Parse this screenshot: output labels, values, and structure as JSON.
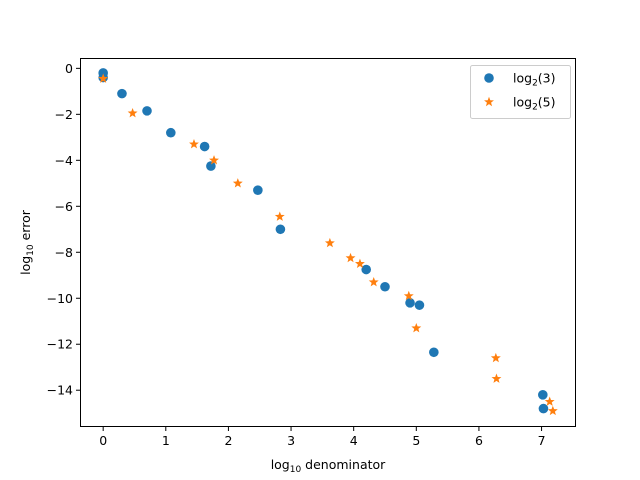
{
  "chart_data": {
    "type": "scatter",
    "title": "",
    "xlabel": {
      "prefix": "log",
      "sub": "10",
      "suffix": " denominator"
    },
    "ylabel": {
      "prefix": "log",
      "sub": "10",
      "suffix": " error"
    },
    "xlim": [
      -0.37,
      7.55
    ],
    "ylim": [
      -15.6,
      0.45
    ],
    "xticks": [
      0,
      1,
      2,
      3,
      4,
      5,
      6,
      7
    ],
    "yticks": [
      0,
      -2,
      -4,
      -6,
      -8,
      -10,
      -12,
      -14
    ],
    "ytick_labels": [
      "0",
      "−2",
      "−4",
      "−6",
      "−8",
      "−10",
      "−12",
      "−14"
    ],
    "grid": false,
    "legend_position": "upper right",
    "series": [
      {
        "name": {
          "prefix": "log",
          "sub": "2",
          "suffix": "(3)"
        },
        "marker": "circle",
        "color": "#1f77b4",
        "points": [
          [
            0.0,
            -0.2
          ],
          [
            0.0,
            -0.4
          ],
          [
            0.3,
            -1.1
          ],
          [
            0.7,
            -1.85
          ],
          [
            1.08,
            -2.8
          ],
          [
            1.62,
            -3.4
          ],
          [
            1.72,
            -4.25
          ],
          [
            2.47,
            -5.3
          ],
          [
            2.83,
            -7.0
          ],
          [
            4.2,
            -8.75
          ],
          [
            4.5,
            -9.5
          ],
          [
            4.9,
            -10.2
          ],
          [
            5.05,
            -10.3
          ],
          [
            5.28,
            -12.35
          ],
          [
            7.02,
            -14.2
          ],
          [
            7.03,
            -14.8
          ]
        ]
      },
      {
        "name": {
          "prefix": "log",
          "sub": "2",
          "suffix": "(5)"
        },
        "marker": "star",
        "color": "#ff7f0e",
        "points": [
          [
            0.0,
            -0.45
          ],
          [
            0.47,
            -1.95
          ],
          [
            1.45,
            -3.3
          ],
          [
            1.77,
            -4.0
          ],
          [
            2.15,
            -5.0
          ],
          [
            2.82,
            -6.45
          ],
          [
            3.62,
            -7.6
          ],
          [
            3.95,
            -8.25
          ],
          [
            4.1,
            -8.5
          ],
          [
            4.32,
            -9.3
          ],
          [
            4.88,
            -9.9
          ],
          [
            5.0,
            -11.3
          ],
          [
            6.27,
            -12.6
          ],
          [
            6.28,
            -13.5
          ],
          [
            7.13,
            -14.5
          ],
          [
            7.18,
            -14.9
          ]
        ]
      }
    ]
  }
}
